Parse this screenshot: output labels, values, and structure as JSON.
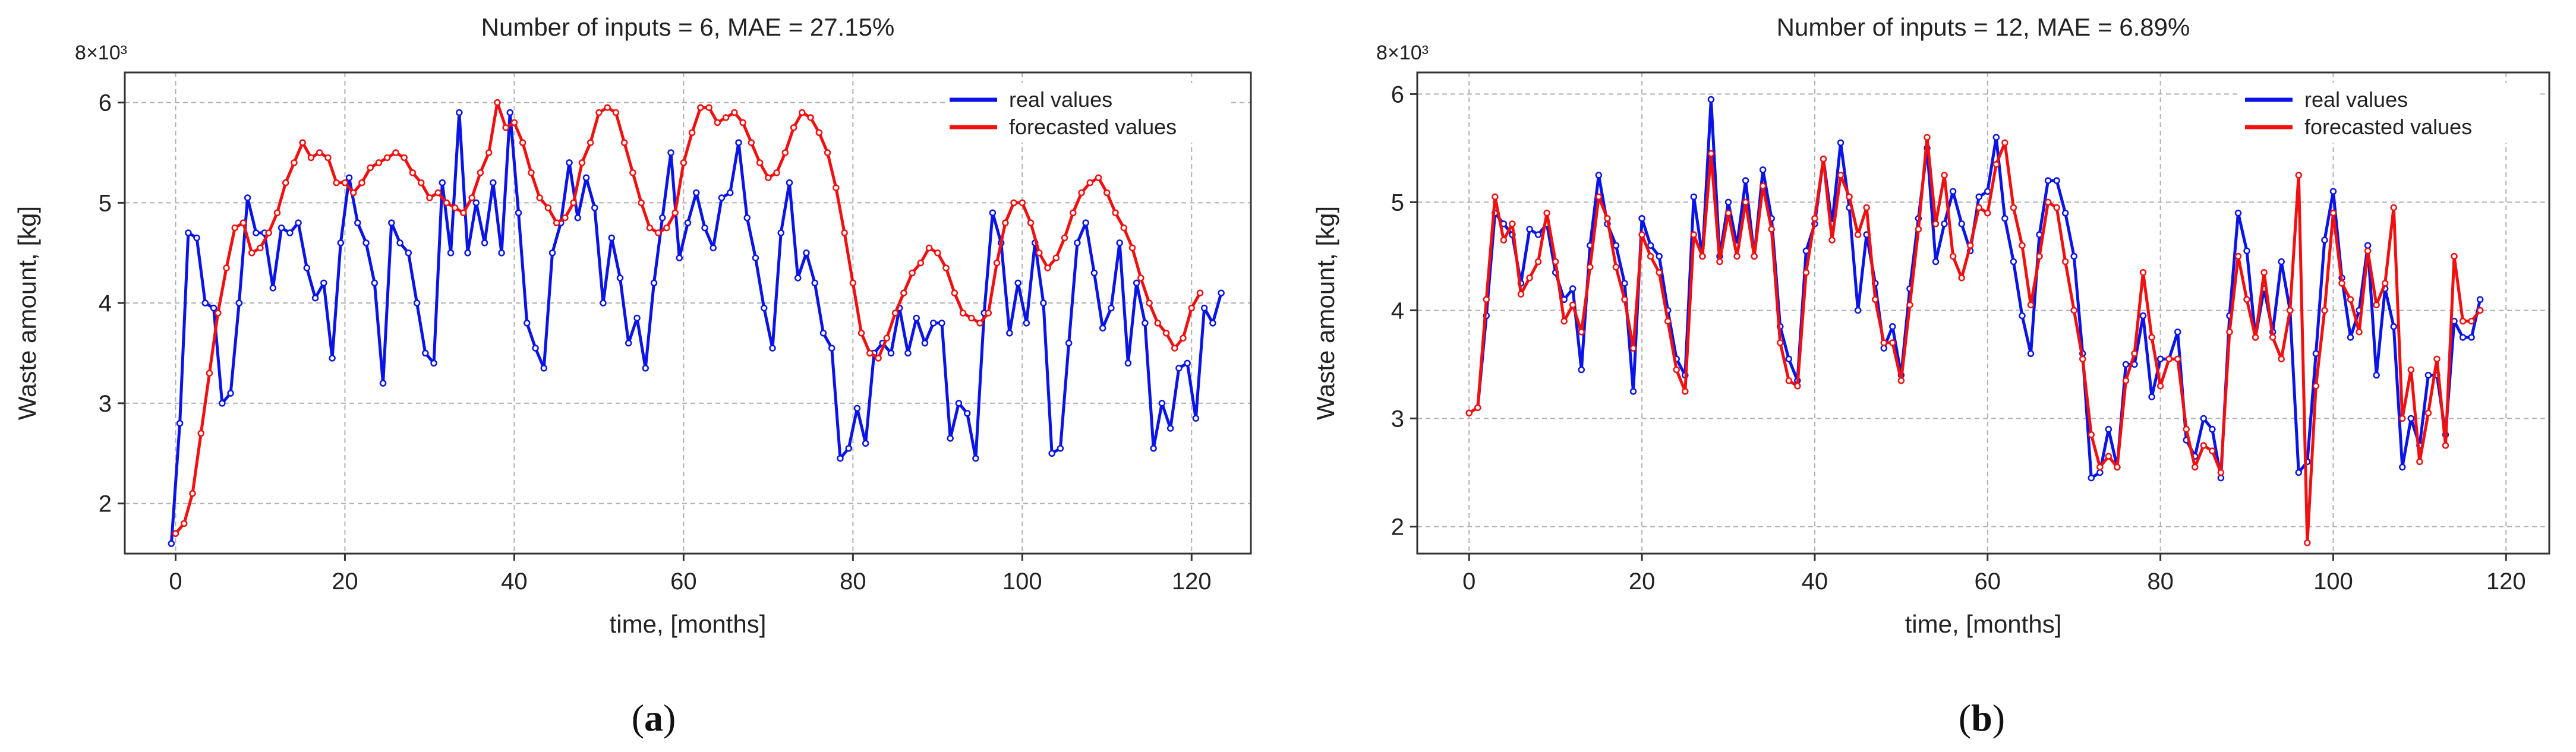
{
  "chart_data": [
    {
      "type": "line",
      "title": "Number of inputs = 6,  MAE = 27.15%",
      "xlabel": "time, [months]",
      "ylabel": "Waste amount, [kg]",
      "y_multiplier": "8×10³",
      "caption_letter": "a",
      "caption_open": "(",
      "caption_close": ")",
      "xlim": [
        -6,
        127
      ],
      "ylim": [
        1.5,
        6.3
      ],
      "xticks": [
        0,
        20,
        40,
        60,
        80,
        100,
        120
      ],
      "yticks": [
        2,
        3,
        4,
        5,
        6
      ],
      "legend_position": "top-right",
      "series": [
        {
          "name": "real values",
          "color": "#0a14e6",
          "values": [
            1.6,
            2.8,
            4.7,
            4.65,
            4.0,
            3.95,
            3.0,
            3.1,
            4.0,
            5.05,
            4.7,
            4.7,
            4.15,
            4.75,
            4.7,
            4.8,
            4.35,
            4.05,
            4.2,
            3.45,
            4.6,
            5.25,
            4.8,
            4.6,
            4.2,
            3.2,
            4.8,
            4.6,
            4.5,
            4.0,
            3.5,
            3.4,
            5.2,
            4.5,
            5.9,
            4.5,
            5.0,
            4.6,
            5.2,
            4.5,
            5.9,
            4.9,
            3.8,
            3.55,
            3.35,
            4.5,
            4.8,
            5.4,
            4.85,
            5.25,
            4.95,
            4.0,
            4.65,
            4.25,
            3.6,
            3.85,
            3.35,
            4.2,
            4.85,
            5.5,
            4.45,
            4.8,
            5.1,
            4.75,
            4.55,
            5.05,
            5.1,
            5.6,
            4.85,
            4.45,
            3.95,
            3.55,
            4.7,
            5.2,
            4.25,
            4.5,
            4.2,
            3.7,
            3.55,
            2.45,
            2.55,
            2.95,
            2.6,
            3.5,
            3.6,
            3.5,
            3.95,
            3.5,
            3.85,
            3.6,
            3.8,
            3.8,
            2.65,
            3.0,
            2.9,
            2.45,
            3.9,
            4.9,
            4.6,
            3.7,
            4.2,
            3.8,
            4.6,
            4.0,
            2.5,
            2.55,
            3.6,
            4.6,
            4.8,
            4.3,
            3.75,
            3.95,
            4.6,
            3.4,
            4.2,
            3.8,
            2.55,
            3.0,
            2.75,
            3.35,
            3.4,
            2.85,
            3.95,
            3.8,
            4.1
          ],
          "x0": -0.5,
          "dx": 1.0
        },
        {
          "name": "forecasted values",
          "color": "#f01010",
          "values": [
            1.7,
            1.8,
            2.1,
            2.7,
            3.3,
            3.9,
            4.35,
            4.75,
            4.8,
            4.5,
            4.55,
            4.7,
            4.9,
            5.2,
            5.4,
            5.6,
            5.45,
            5.5,
            5.45,
            5.2,
            5.2,
            5.1,
            5.2,
            5.35,
            5.4,
            5.45,
            5.5,
            5.45,
            5.3,
            5.2,
            5.05,
            5.1,
            5.0,
            4.95,
            4.9,
            5.05,
            5.3,
            5.5,
            6.0,
            5.75,
            5.8,
            5.6,
            5.3,
            5.05,
            4.95,
            4.8,
            4.85,
            5.0,
            5.4,
            5.6,
            5.9,
            5.95,
            5.9,
            5.6,
            5.3,
            5.0,
            4.75,
            4.7,
            4.75,
            4.9,
            5.4,
            5.7,
            5.95,
            5.95,
            5.8,
            5.85,
            5.9,
            5.8,
            5.6,
            5.4,
            5.25,
            5.3,
            5.5,
            5.75,
            5.9,
            5.85,
            5.7,
            5.5,
            5.15,
            4.7,
            4.2,
            3.7,
            3.5,
            3.45,
            3.65,
            3.9,
            4.1,
            4.3,
            4.4,
            4.55,
            4.5,
            4.35,
            4.1,
            3.9,
            3.85,
            3.8,
            3.9,
            4.4,
            4.8,
            5.0,
            5.0,
            4.8,
            4.5,
            4.35,
            4.45,
            4.65,
            4.9,
            5.1,
            5.2,
            5.25,
            5.1,
            4.9,
            4.75,
            4.55,
            4.25,
            4.0,
            3.8,
            3.7,
            3.55,
            3.65,
            3.95,
            4.1
          ],
          "x0": 0.0,
          "dx": 1.0
        }
      ]
    },
    {
      "type": "line",
      "title": "Number of inputs = 12,  MAE = 6.89%",
      "xlabel": "time, [months]",
      "ylabel": "Waste amount, [kg]",
      "y_multiplier": "8×10³",
      "caption_letter": "b",
      "caption_open": "(",
      "caption_close": ")",
      "xlim": [
        -6,
        125
      ],
      "ylim": [
        1.75,
        6.2
      ],
      "xticks": [
        0,
        20,
        40,
        60,
        80,
        100,
        120
      ],
      "yticks": [
        2,
        3,
        4,
        5,
        6
      ],
      "legend_position": "top-right",
      "series": [
        {
          "name": "real values",
          "color": "#0a14e6",
          "values": [
            3.05,
            3.1,
            3.95,
            4.9,
            4.8,
            4.7,
            4.25,
            4.75,
            4.7,
            4.8,
            4.35,
            4.1,
            4.2,
            3.45,
            4.6,
            5.25,
            4.8,
            4.6,
            4.25,
            3.25,
            4.85,
            4.6,
            4.5,
            4.0,
            3.55,
            3.4,
            5.05,
            4.5,
            5.95,
            4.5,
            5.0,
            4.6,
            5.2,
            4.5,
            5.3,
            4.85,
            3.85,
            3.55,
            3.35,
            4.55,
            4.8,
            5.4,
            4.8,
            5.55,
            4.95,
            4.0,
            4.7,
            4.25,
            3.65,
            3.85,
            3.4,
            4.2,
            4.85,
            5.5,
            4.45,
            4.8,
            5.1,
            4.8,
            4.55,
            5.05,
            5.1,
            5.6,
            4.85,
            4.45,
            3.95,
            3.6,
            4.7,
            5.2,
            5.2,
            4.9,
            4.5,
            3.6,
            2.45,
            2.5,
            2.9,
            2.55,
            3.5,
            3.5,
            3.95,
            3.2,
            3.55,
            3.55,
            3.8,
            2.8,
            2.65,
            3.0,
            2.9,
            2.45,
            3.95,
            4.9,
            4.55,
            3.75,
            4.2,
            3.8,
            4.45,
            4.0,
            2.5,
            2.6,
            3.6,
            4.65,
            5.1,
            4.3,
            3.75,
            4.0,
            4.6,
            3.4,
            4.2,
            3.85,
            2.55,
            3.0,
            2.75,
            3.4,
            3.4,
            2.85,
            3.9,
            3.75,
            3.75,
            4.1
          ],
          "x0": 0.0,
          "dx": 1.0
        },
        {
          "name": "forecasted values",
          "color": "#f01010",
          "values": [
            3.05,
            3.1,
            4.1,
            5.05,
            4.65,
            4.8,
            4.15,
            4.3,
            4.45,
            4.9,
            4.45,
            3.9,
            4.05,
            3.8,
            4.4,
            5.05,
            4.85,
            4.4,
            4.1,
            3.65,
            4.7,
            4.5,
            4.35,
            3.9,
            3.45,
            3.25,
            4.7,
            4.5,
            5.45,
            4.45,
            4.9,
            4.5,
            5.0,
            4.5,
            5.15,
            4.75,
            3.7,
            3.35,
            3.3,
            4.35,
            4.85,
            5.4,
            4.65,
            5.25,
            5.05,
            4.7,
            4.95,
            4.1,
            3.7,
            3.7,
            3.35,
            4.05,
            4.75,
            5.6,
            4.8,
            5.25,
            4.5,
            4.3,
            4.6,
            4.95,
            4.9,
            5.35,
            5.55,
            4.95,
            4.6,
            4.05,
            4.5,
            5.0,
            4.95,
            4.45,
            4.0,
            3.55,
            2.85,
            2.55,
            2.65,
            2.55,
            3.35,
            3.6,
            4.35,
            3.75,
            3.3,
            3.55,
            3.55,
            2.9,
            2.55,
            2.75,
            2.7,
            2.5,
            3.8,
            4.5,
            4.1,
            3.75,
            4.35,
            3.75,
            3.55,
            4.0,
            5.25,
            1.85,
            3.3,
            4.0,
            4.9,
            4.25,
            4.1,
            3.8,
            4.55,
            4.05,
            4.25,
            4.95,
            3.0,
            3.45,
            2.6,
            3.05,
            3.55,
            2.75,
            4.5,
            3.9,
            3.9,
            4.0
          ],
          "x0": 0.0,
          "dx": 1.0
        }
      ]
    }
  ]
}
